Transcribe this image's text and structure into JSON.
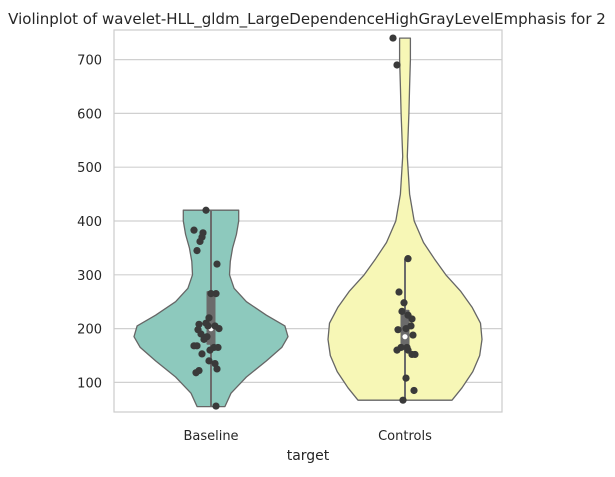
{
  "chart_data": {
    "type": "violin",
    "title": "Violinplot of wavelet-HLL_gldm_LargeDependenceHighGrayLevelEmphasis for 2",
    "xlabel": "target",
    "ylabel": "",
    "categories": [
      "Baseline",
      "Controls"
    ],
    "ylim": [
      45,
      755
    ],
    "yticks": [
      100,
      200,
      300,
      400,
      500,
      600,
      700
    ],
    "grid": true,
    "colors": {
      "Baseline": "#8dc9bd",
      "Controls": "#f7f7b6",
      "points": "#3a3a3a",
      "violin_edge": "#666666",
      "box": "#6b6b6b",
      "grid": "#d0d0d0",
      "frame": "#cccccc"
    },
    "series": [
      {
        "category": "Baseline",
        "min": 55,
        "max": 420,
        "q1": 170,
        "median": 200,
        "q3": 270,
        "whisker_low": 55,
        "whisker_high": 420,
        "density": [
          [
            55,
            0.18
          ],
          [
            80,
            0.26
          ],
          [
            110,
            0.46
          ],
          [
            140,
            0.72
          ],
          [
            165,
            0.92
          ],
          [
            185,
            1.0
          ],
          [
            205,
            0.96
          ],
          [
            225,
            0.72
          ],
          [
            250,
            0.46
          ],
          [
            275,
            0.3
          ],
          [
            300,
            0.24
          ],
          [
            325,
            0.25
          ],
          [
            350,
            0.28
          ],
          [
            375,
            0.33
          ],
          [
            400,
            0.36
          ],
          [
            420,
            0.36
          ]
        ],
        "points": [
          [
            -0.05,
            420
          ],
          [
            -0.17,
            383
          ],
          [
            -0.08,
            378
          ],
          [
            -0.09,
            370
          ],
          [
            -0.11,
            362
          ],
          [
            -0.14,
            345
          ],
          [
            0.06,
            320
          ],
          [
            0.05,
            265
          ],
          [
            0.0,
            265
          ],
          [
            -0.02,
            220
          ],
          [
            -0.05,
            210
          ],
          [
            -0.12,
            208
          ],
          [
            -0.03,
            205
          ],
          [
            0.04,
            205
          ],
          [
            0.08,
            200
          ],
          [
            -0.13,
            198
          ],
          [
            -0.1,
            190
          ],
          [
            -0.04,
            185
          ],
          [
            -0.07,
            180
          ],
          [
            -0.17,
            168
          ],
          [
            -0.14,
            168
          ],
          [
            0.03,
            165
          ],
          [
            0.07,
            165
          ],
          [
            -0.01,
            160
          ],
          [
            -0.09,
            153
          ],
          [
            -0.02,
            140
          ],
          [
            0.04,
            135
          ],
          [
            0.06,
            125
          ],
          [
            -0.12,
            122
          ],
          [
            -0.15,
            118
          ],
          [
            0.05,
            56
          ]
        ]
      },
      {
        "category": "Controls",
        "min": 67,
        "max": 740,
        "q1": 160,
        "median": 185,
        "q3": 235,
        "whisker_low": 67,
        "whisker_high": 330,
        "density": [
          [
            67,
            0.61
          ],
          [
            90,
            0.74
          ],
          [
            120,
            0.88
          ],
          [
            150,
            0.97
          ],
          [
            180,
            1.0
          ],
          [
            210,
            0.98
          ],
          [
            240,
            0.87
          ],
          [
            270,
            0.72
          ],
          [
            300,
            0.53
          ],
          [
            330,
            0.38
          ],
          [
            360,
            0.24
          ],
          [
            400,
            0.12
          ],
          [
            450,
            0.06
          ],
          [
            520,
            0.03
          ],
          [
            600,
            0.05
          ],
          [
            650,
            0.06
          ],
          [
            700,
            0.07
          ],
          [
            740,
            0.07
          ]
        ],
        "points": [
          [
            -0.12,
            740
          ],
          [
            -0.08,
            690
          ],
          [
            0.03,
            330
          ],
          [
            -0.06,
            268
          ],
          [
            -0.01,
            248
          ],
          [
            0.07,
            218
          ],
          [
            -0.03,
            232
          ],
          [
            0.03,
            225
          ],
          [
            0.06,
            205
          ],
          [
            0.01,
            200
          ],
          [
            -0.07,
            198
          ],
          [
            0.08,
            188
          ],
          [
            0.02,
            165
          ],
          [
            -0.04,
            165
          ],
          [
            0.03,
            160
          ],
          [
            -0.08,
            160
          ],
          [
            0.07,
            152
          ],
          [
            0.1,
            152
          ],
          [
            0.01,
            108
          ],
          [
            0.09,
            85
          ],
          [
            -0.02,
            67
          ]
        ]
      }
    ]
  }
}
